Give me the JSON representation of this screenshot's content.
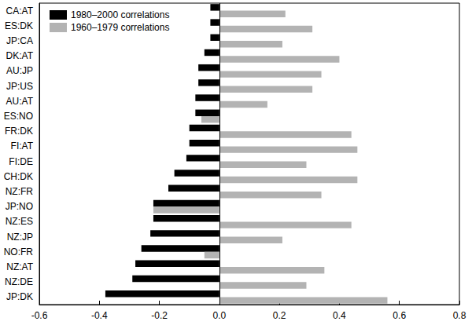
{
  "chart_data": {
    "type": "bar",
    "orientation": "horizontal",
    "categories": [
      "CA:AT",
      "ES:DK",
      "JP:CA",
      "DK:AT",
      "AU:JP",
      "JP:US",
      "AU:AT",
      "ES:NO",
      "FR:DK",
      "FI:AT",
      "FI:DE",
      "CH:DK",
      "NZ:FR",
      "JP:NO",
      "NZ:ES",
      "NZ:JP",
      "NO:FR",
      "NZ:AT",
      "NZ:DE",
      "JP:DK"
    ],
    "series": [
      {
        "name": "1980–2000 correlations",
        "color": "#000000",
        "values": [
          -0.03,
          -0.03,
          -0.03,
          -0.05,
          -0.07,
          -0.07,
          -0.08,
          -0.08,
          -0.1,
          -0.1,
          -0.11,
          -0.15,
          -0.17,
          -0.22,
          -0.22,
          -0.23,
          -0.26,
          -0.28,
          -0.29,
          -0.38
        ]
      },
      {
        "name": "1960–1979 correlations",
        "color": "#b3b3b3",
        "values": [
          0.22,
          0.31,
          0.21,
          0.4,
          0.34,
          0.31,
          0.16,
          -0.06,
          0.44,
          0.46,
          0.29,
          0.46,
          0.34,
          -0.22,
          0.44,
          0.21,
          -0.05,
          0.35,
          0.29,
          0.56
        ]
      }
    ],
    "xlim": [
      -0.6,
      0.8
    ],
    "xticks": [
      -0.6,
      -0.4,
      -0.2,
      {
        "value": 0,
        "label": "0.0"
      },
      0.2,
      0.4,
      0.6,
      0.8
    ],
    "legend": "top-left",
    "grid": false
  }
}
